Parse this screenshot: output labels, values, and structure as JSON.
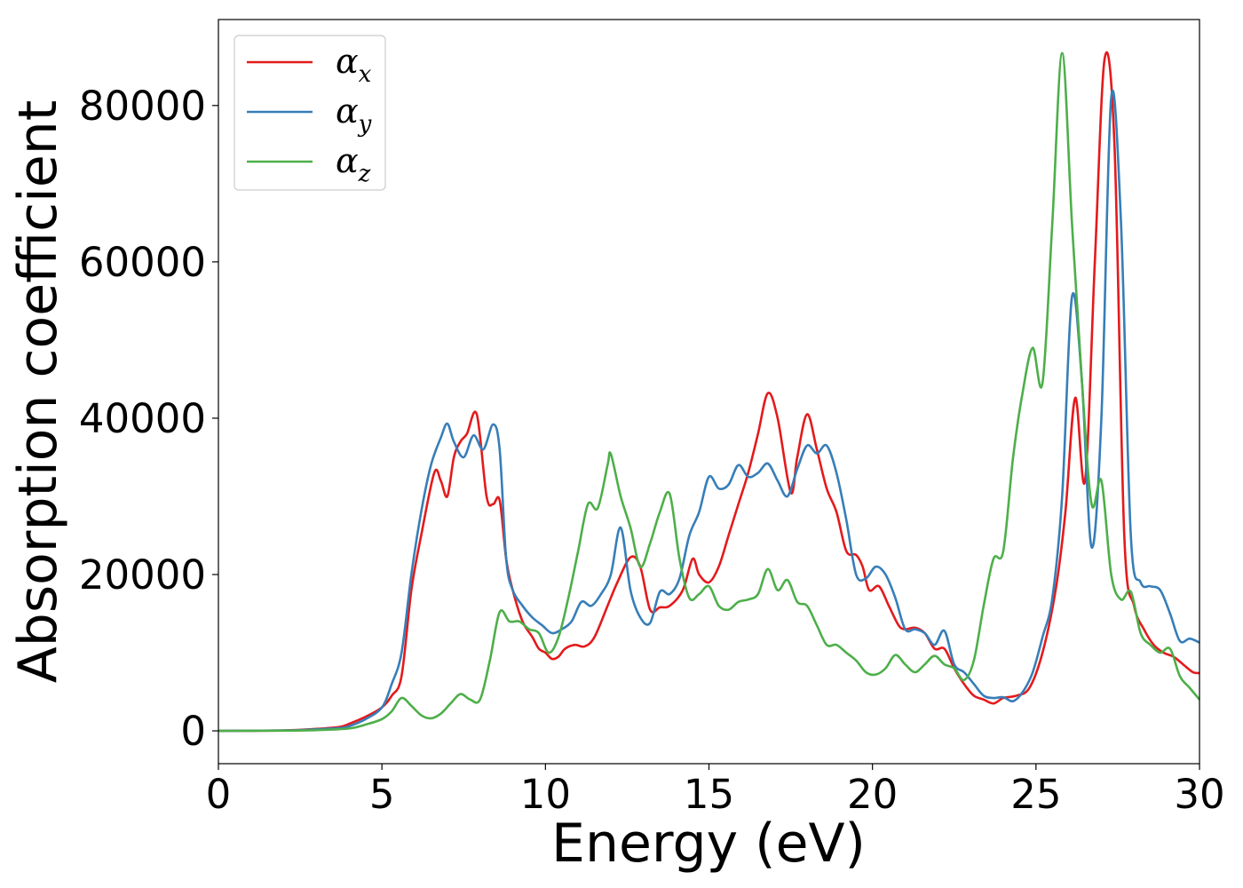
{
  "chart_data": {
    "type": "line",
    "xlabel": "Energy (eV)",
    "ylabel": "Absorption coefficient",
    "xlim": [
      0,
      30
    ],
    "ylim": [
      -4200,
      91000
    ],
    "xticks": [
      0,
      5,
      10,
      15,
      20,
      25,
      30
    ],
    "yticks": [
      0,
      20000,
      40000,
      60000,
      80000
    ],
    "xtick_labels": [
      "0",
      "5",
      "10",
      "15",
      "20",
      "25",
      "30"
    ],
    "ytick_labels": [
      "0",
      "20000",
      "40000",
      "60000",
      "80000"
    ],
    "grid": false,
    "legend_position": "upper-left",
    "series": [
      {
        "name": "α",
        "subscript": "x",
        "color": "#e41a1c",
        "x": [
          0,
          2,
          3,
          3.7,
          4,
          4.5,
          5,
          5.3,
          5.6,
          5.9,
          6.2,
          6.6,
          6.8,
          7.0,
          7.2,
          7.4,
          7.6,
          7.9,
          8.2,
          8.4,
          8.6,
          8.8,
          9.0,
          9.3,
          9.6,
          9.8,
          10.0,
          10.2,
          10.4,
          10.6,
          10.9,
          11.2,
          11.5,
          11.9,
          12.2,
          12.6,
          12.9,
          13.2,
          13.5,
          13.8,
          14.2,
          14.5,
          14.7,
          15.0,
          15.3,
          15.6,
          15.9,
          16.2,
          16.5,
          16.8,
          17.1,
          17.5,
          17.7,
          18.0,
          18.3,
          18.6,
          18.9,
          19.2,
          19.5,
          19.7,
          19.9,
          20.2,
          20.5,
          20.8,
          21.0,
          21.3,
          21.6,
          21.9,
          22.2,
          22.5,
          22.8,
          23.1,
          23.4,
          23.7,
          24.0,
          24.4,
          24.8,
          25.2,
          25.6,
          25.9,
          26.2,
          26.5,
          26.8,
          27.1,
          27.4,
          27.7,
          28.0,
          28.3,
          28.6,
          28.9,
          29.2,
          29.5,
          29.8,
          30.0
        ],
        "values": [
          0,
          50,
          250,
          500,
          900,
          1800,
          3000,
          4500,
          7000,
          18000,
          25000,
          33000,
          32000,
          30000,
          35000,
          37000,
          38000,
          40500,
          30000,
          29000,
          29500,
          22000,
          18000,
          14000,
          12000,
          10500,
          10000,
          9200,
          9500,
          10500,
          11000,
          10800,
          12000,
          16000,
          19000,
          22200,
          21000,
          15500,
          15800,
          16000,
          18000,
          22000,
          20000,
          19000,
          21000,
          25000,
          29000,
          33000,
          38000,
          43200,
          40000,
          30500,
          35000,
          40500,
          36000,
          31000,
          28000,
          23000,
          22500,
          21000,
          18000,
          18500,
          16000,
          13500,
          13000,
          13200,
          12500,
          10500,
          10500,
          8000,
          6000,
          4500,
          4000,
          3500,
          4200,
          4500,
          5500,
          10000,
          18000,
          28000,
          42600,
          32000,
          60000,
          86000,
          75000,
          25000,
          16000,
          13000,
          11000,
          10000,
          9500,
          8500,
          7500,
          7400
        ]
      },
      {
        "name": "α",
        "subscript": "y",
        "color": "#377eb8",
        "x": [
          0,
          2,
          3,
          3.7,
          4,
          4.5,
          5,
          5.3,
          5.6,
          5.9,
          6.2,
          6.5,
          6.8,
          7.0,
          7.2,
          7.5,
          7.8,
          8.1,
          8.4,
          8.6,
          8.8,
          9.0,
          9.3,
          9.6,
          9.9,
          10.2,
          10.5,
          10.8,
          11.1,
          11.4,
          11.7,
          12.0,
          12.3,
          12.6,
          12.9,
          13.2,
          13.5,
          13.8,
          14.1,
          14.4,
          14.7,
          15.0,
          15.3,
          15.6,
          15.9,
          16.2,
          16.5,
          16.8,
          17.1,
          17.4,
          17.7,
          18.0,
          18.3,
          18.6,
          18.9,
          19.2,
          19.5,
          19.8,
          20.1,
          20.4,
          20.7,
          21.0,
          21.3,
          21.6,
          21.9,
          22.2,
          22.5,
          22.8,
          23.1,
          23.4,
          23.7,
          24.0,
          24.3,
          24.6,
          24.9,
          25.2,
          25.5,
          25.8,
          26.1,
          26.4,
          26.7,
          27.0,
          27.3,
          27.6,
          27.9,
          28.2,
          28.5,
          28.8,
          29.1,
          29.4,
          29.7,
          30.0
        ],
        "values": [
          0,
          50,
          200,
          350,
          600,
          1500,
          3000,
          6000,
          10000,
          20000,
          28000,
          34000,
          37500,
          39300,
          37000,
          35000,
          37800,
          36000,
          39200,
          36000,
          22000,
          18000,
          16000,
          14500,
          13500,
          12500,
          13000,
          14000,
          16500,
          16000,
          17500,
          20000,
          26000,
          18000,
          14500,
          13800,
          17800,
          17500,
          19500,
          25000,
          28000,
          32500,
          31000,
          31500,
          34000,
          32500,
          33000,
          34200,
          32000,
          30000,
          33500,
          36500,
          35500,
          36500,
          33000,
          27000,
          20000,
          19500,
          21000,
          20000,
          17000,
          13000,
          13000,
          12500,
          11000,
          12800,
          8500,
          7500,
          6000,
          4500,
          4200,
          4300,
          3800,
          5000,
          7500,
          12000,
          17000,
          30000,
          55500,
          45000,
          23500,
          40000,
          81000,
          65000,
          25000,
          19000,
          18500,
          18000,
          15000,
          11500,
          11800,
          11300
        ]
      },
      {
        "name": "α",
        "subscript": "z",
        "color": "#4daf4a",
        "x": [
          0,
          2,
          3,
          4,
          4.5,
          5,
          5.3,
          5.6,
          5.9,
          6.2,
          6.5,
          6.8,
          7.1,
          7.4,
          7.7,
          8.0,
          8.3,
          8.6,
          8.9,
          9.2,
          9.5,
          9.8,
          10.1,
          10.4,
          10.7,
          11.0,
          11.3,
          11.6,
          11.9,
          12.0,
          12.3,
          12.6,
          12.9,
          13.2,
          13.5,
          13.8,
          14.1,
          14.4,
          14.7,
          15.0,
          15.3,
          15.6,
          15.9,
          16.2,
          16.5,
          16.8,
          17.1,
          17.4,
          17.7,
          18.0,
          18.3,
          18.6,
          18.9,
          19.2,
          19.5,
          19.8,
          20.1,
          20.4,
          20.7,
          21.0,
          21.3,
          21.6,
          21.9,
          22.2,
          22.5,
          22.8,
          23.1,
          23.4,
          23.7,
          24.0,
          24.3,
          24.6,
          24.9,
          25.2,
          25.5,
          25.8,
          26.1,
          26.4,
          26.7,
          27.0,
          27.3,
          27.6,
          27.9,
          28.2,
          28.5,
          28.8,
          29.1,
          29.4,
          29.7,
          30.0
        ],
        "values": [
          0,
          30,
          100,
          300,
          800,
          1500,
          2500,
          4200,
          3200,
          2000,
          1600,
          2200,
          3500,
          4700,
          4000,
          4000,
          9000,
          15200,
          14000,
          14000,
          13000,
          12500,
          10000,
          12000,
          17000,
          23000,
          29000,
          28500,
          34000,
          35400,
          30000,
          26000,
          21000,
          24000,
          28000,
          30300,
          22000,
          17000,
          17500,
          18500,
          16000,
          15500,
          16500,
          16800,
          17500,
          20700,
          18000,
          19300,
          16500,
          16000,
          13500,
          11000,
          11000,
          10000,
          9000,
          7500,
          7200,
          8000,
          9700,
          8500,
          7500,
          8500,
          9600,
          8500,
          8000,
          6500,
          9000,
          16000,
          22000,
          23000,
          35000,
          43500,
          49000,
          44500,
          65000,
          86700,
          65000,
          45000,
          29000,
          32000,
          20000,
          16800,
          17800,
          12500,
          11000,
          10000,
          10500,
          7000,
          5500,
          4000
        ]
      }
    ]
  }
}
